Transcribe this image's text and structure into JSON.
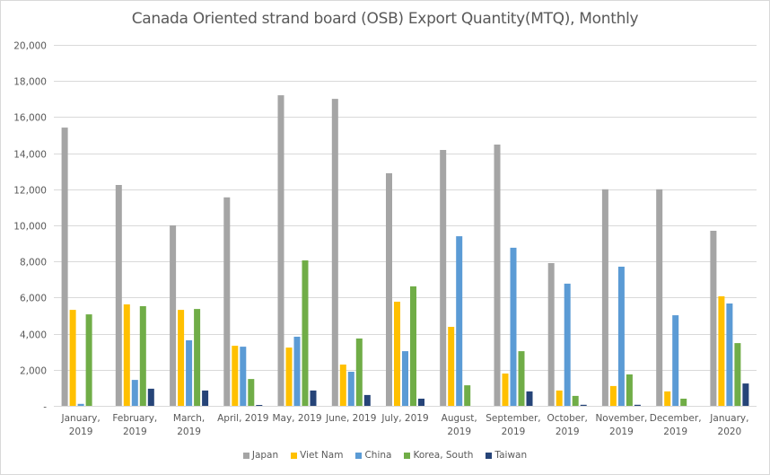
{
  "chart_data": {
    "type": "bar",
    "title": "Canada Oriented strand board (OSB) Export Quantity(MTQ), Monthly",
    "xlabel": "",
    "ylabel": "",
    "ylim": [
      0,
      20000
    ],
    "yticks": [
      0,
      2000,
      4000,
      6000,
      8000,
      10000,
      12000,
      14000,
      16000,
      18000,
      20000
    ],
    "ytick_labels": [
      "-",
      "2,000",
      "4,000",
      "6,000",
      "8,000",
      "10,000",
      "12,000",
      "14,000",
      "16,000",
      "18,000",
      "20,000"
    ],
    "grid": true,
    "legend_position": "bottom",
    "categories": [
      [
        "January,",
        "2019"
      ],
      [
        "February,",
        "2019"
      ],
      [
        "March,",
        "2019"
      ],
      [
        "April, 2019"
      ],
      [
        "May, 2019"
      ],
      [
        "June, 2019"
      ],
      [
        "July, 2019"
      ],
      [
        "August,",
        "2019"
      ],
      [
        "September,",
        "2019"
      ],
      [
        "October,",
        "2019"
      ],
      [
        "November,",
        "2019"
      ],
      [
        "December,",
        "2019"
      ],
      [
        "January,",
        "2020"
      ]
    ],
    "series": [
      {
        "name": "Japan",
        "color": "#a5a5a5",
        "values": [
          15420,
          12240,
          10000,
          11550,
          17210,
          17010,
          12890,
          14180,
          14480,
          7910,
          12000,
          12000,
          9700
        ]
      },
      {
        "name": "Viet Nam",
        "color": "#ffc000",
        "values": [
          5320,
          5620,
          5320,
          3330,
          3230,
          2290,
          5770,
          4380,
          1790,
          850,
          1100,
          800,
          6070
        ]
      },
      {
        "name": "China",
        "color": "#5b9bd5",
        "values": [
          110,
          1440,
          3630,
          3280,
          3830,
          1890,
          3030,
          9400,
          8760,
          6770,
          7710,
          5020,
          5670
        ]
      },
      {
        "name": "Korea, South",
        "color": "#70ad47",
        "values": [
          5070,
          5520,
          5370,
          1490,
          8060,
          3730,
          6620,
          1140,
          3030,
          550,
          1740,
          400,
          3480
        ]
      },
      {
        "name": "Taiwan",
        "color": "#264478",
        "values": [
          0,
          950,
          850,
          50,
          850,
          600,
          400,
          0,
          800,
          60,
          60,
          0,
          1240
        ]
      }
    ]
  }
}
